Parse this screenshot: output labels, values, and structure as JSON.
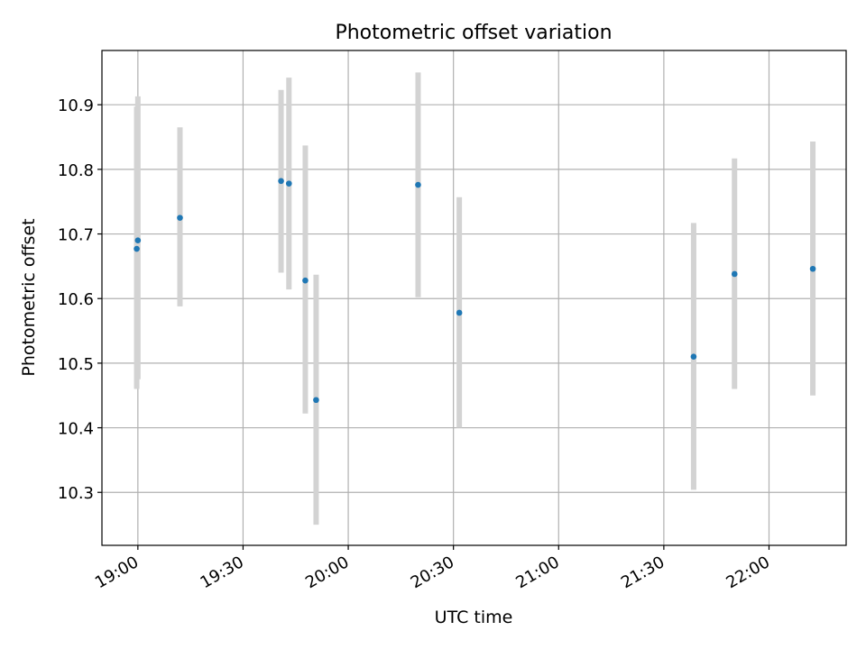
{
  "chart_data": {
    "type": "scatter",
    "title": "Photometric offset variation",
    "xlabel": "UTC time",
    "ylabel": "Photometric offset",
    "xlim": [
      "18:49:45",
      "22:22:00"
    ],
    "ylim": [
      10.218,
      10.984
    ],
    "grid": true,
    "x_ticks": [
      "19:00",
      "19:30",
      "20:00",
      "20:30",
      "21:00",
      "21:30",
      "22:00"
    ],
    "y_ticks": [
      10.3,
      10.4,
      10.5,
      10.6,
      10.7,
      10.8,
      10.9
    ],
    "marker_color": "#1f77b4",
    "errorbar_color": "#d3d3d3",
    "points": [
      {
        "x": "18:59:40",
        "y": 10.677,
        "err_low": 10.46,
        "err_high": 10.897
      },
      {
        "x": "19:00:00",
        "y": 10.69,
        "err_low": 10.475,
        "err_high": 10.913
      },
      {
        "x": "19:12:00",
        "y": 10.725,
        "err_low": 10.588,
        "err_high": 10.865
      },
      {
        "x": "19:40:50",
        "y": 10.782,
        "err_low": 10.64,
        "err_high": 10.923
      },
      {
        "x": "19:43:05",
        "y": 10.778,
        "err_low": 10.614,
        "err_high": 10.942
      },
      {
        "x": "19:47:45",
        "y": 10.628,
        "err_low": 10.422,
        "err_high": 10.837
      },
      {
        "x": "19:50:50",
        "y": 10.443,
        "err_low": 10.25,
        "err_high": 10.637
      },
      {
        "x": "20:19:55",
        "y": 10.776,
        "err_low": 10.602,
        "err_high": 10.95
      },
      {
        "x": "20:31:40",
        "y": 10.578,
        "err_low": 10.4,
        "err_high": 10.757
      },
      {
        "x": "21:38:30",
        "y": 10.51,
        "err_low": 10.304,
        "err_high": 10.717
      },
      {
        "x": "21:50:10",
        "y": 10.638,
        "err_low": 10.46,
        "err_high": 10.817
      },
      {
        "x": "22:12:30",
        "y": 10.646,
        "err_low": 10.45,
        "err_high": 10.843
      }
    ]
  }
}
